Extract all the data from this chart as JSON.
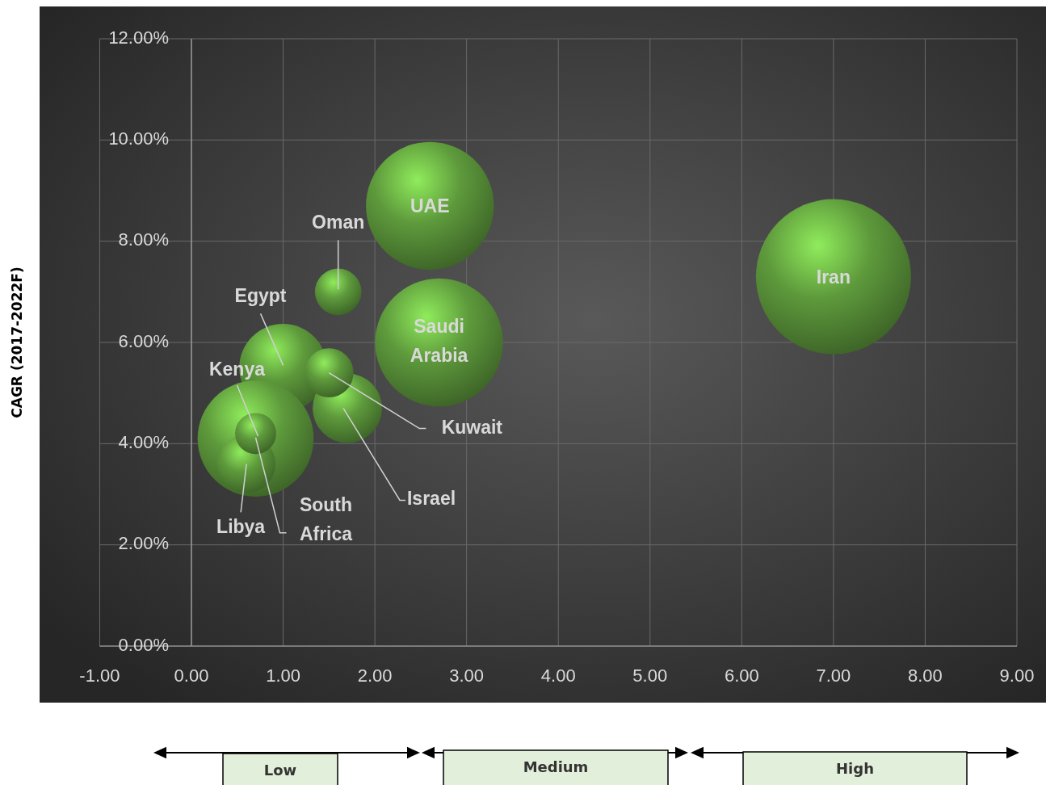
{
  "chart_data": {
    "type": "bubble",
    "ylabel": "CAGR (2017-2022F)",
    "xlim": [
      -1,
      9
    ],
    "xticks": [
      {
        "value": -1,
        "label": "-1.00"
      },
      {
        "value": 0,
        "label": "0.00"
      },
      {
        "value": 1,
        "label": "1.00"
      },
      {
        "value": 2,
        "label": "2.00"
      },
      {
        "value": 3,
        "label": "3.00"
      },
      {
        "value": 4,
        "label": "4.00"
      },
      {
        "value": 5,
        "label": "5.00"
      },
      {
        "value": 6,
        "label": "6.00"
      },
      {
        "value": 7,
        "label": "7.00"
      },
      {
        "value": 8,
        "label": "8.00"
      },
      {
        "value": 9,
        "label": "9.00"
      }
    ],
    "ylim": [
      0,
      12
    ],
    "yticks": [
      {
        "value": 0,
        "label": "0.00%"
      },
      {
        "value": 2,
        "label": "2.00%"
      },
      {
        "value": 4,
        "label": "4.00%"
      },
      {
        "value": 6,
        "label": "6.00%"
      },
      {
        "value": 8,
        "label": "8.00%"
      },
      {
        "value": 10,
        "label": "10.00%"
      },
      {
        "value": 12,
        "label": "12.00%"
      }
    ],
    "grid": true,
    "series": [
      {
        "name": "Iran",
        "color": "#5e9a3c",
        "x": [
          7.0
        ],
        "values": [
          7.3
        ],
        "sizes": [
          1
        ]
      },
      {
        "name": "UAE",
        "color": "#5e9a3c",
        "x": [
          2.6
        ],
        "values": [
          8.7
        ],
        "sizes": [
          0.68
        ]
      },
      {
        "name": "Saudi Arabia",
        "color": "#5e9a3c",
        "x": [
          2.7
        ],
        "values": [
          6.0
        ],
        "sizes": [
          0.68
        ]
      },
      {
        "name": "Oman",
        "color": "#5e9a3c",
        "x": [
          1.6
        ],
        "values": [
          7.0
        ],
        "sizes": [
          0.09
        ]
      },
      {
        "name": "Egypt",
        "color": "#5e9a3c",
        "x": [
          1.0
        ],
        "values": [
          5.5
        ],
        "sizes": [
          0.32
        ]
      },
      {
        "name": "Kenya",
        "color": "#5e9a3c",
        "x": [
          0.7
        ],
        "values": [
          4.1
        ],
        "sizes": [
          0.56
        ]
      },
      {
        "name": "Israel",
        "color": "#5e9a3c",
        "x": [
          1.7
        ],
        "values": [
          4.7
        ],
        "sizes": [
          0.2
        ]
      },
      {
        "name": "Kuwait",
        "color": "#5e9a3c",
        "x": [
          1.5
        ],
        "values": [
          5.4
        ],
        "sizes": [
          0.1
        ]
      },
      {
        "name": "Libya",
        "color": "#5e9a3c",
        "x": [
          0.6
        ],
        "values": [
          3.6
        ],
        "sizes": [
          0.14
        ]
      },
      {
        "name": "South Africa",
        "color": "#5e9a3c",
        "x": [
          0.7
        ],
        "values": [
          4.2
        ],
        "sizes": [
          0.07
        ]
      }
    ],
    "annotations": [
      "Low",
      "Medium",
      "High"
    ]
  }
}
